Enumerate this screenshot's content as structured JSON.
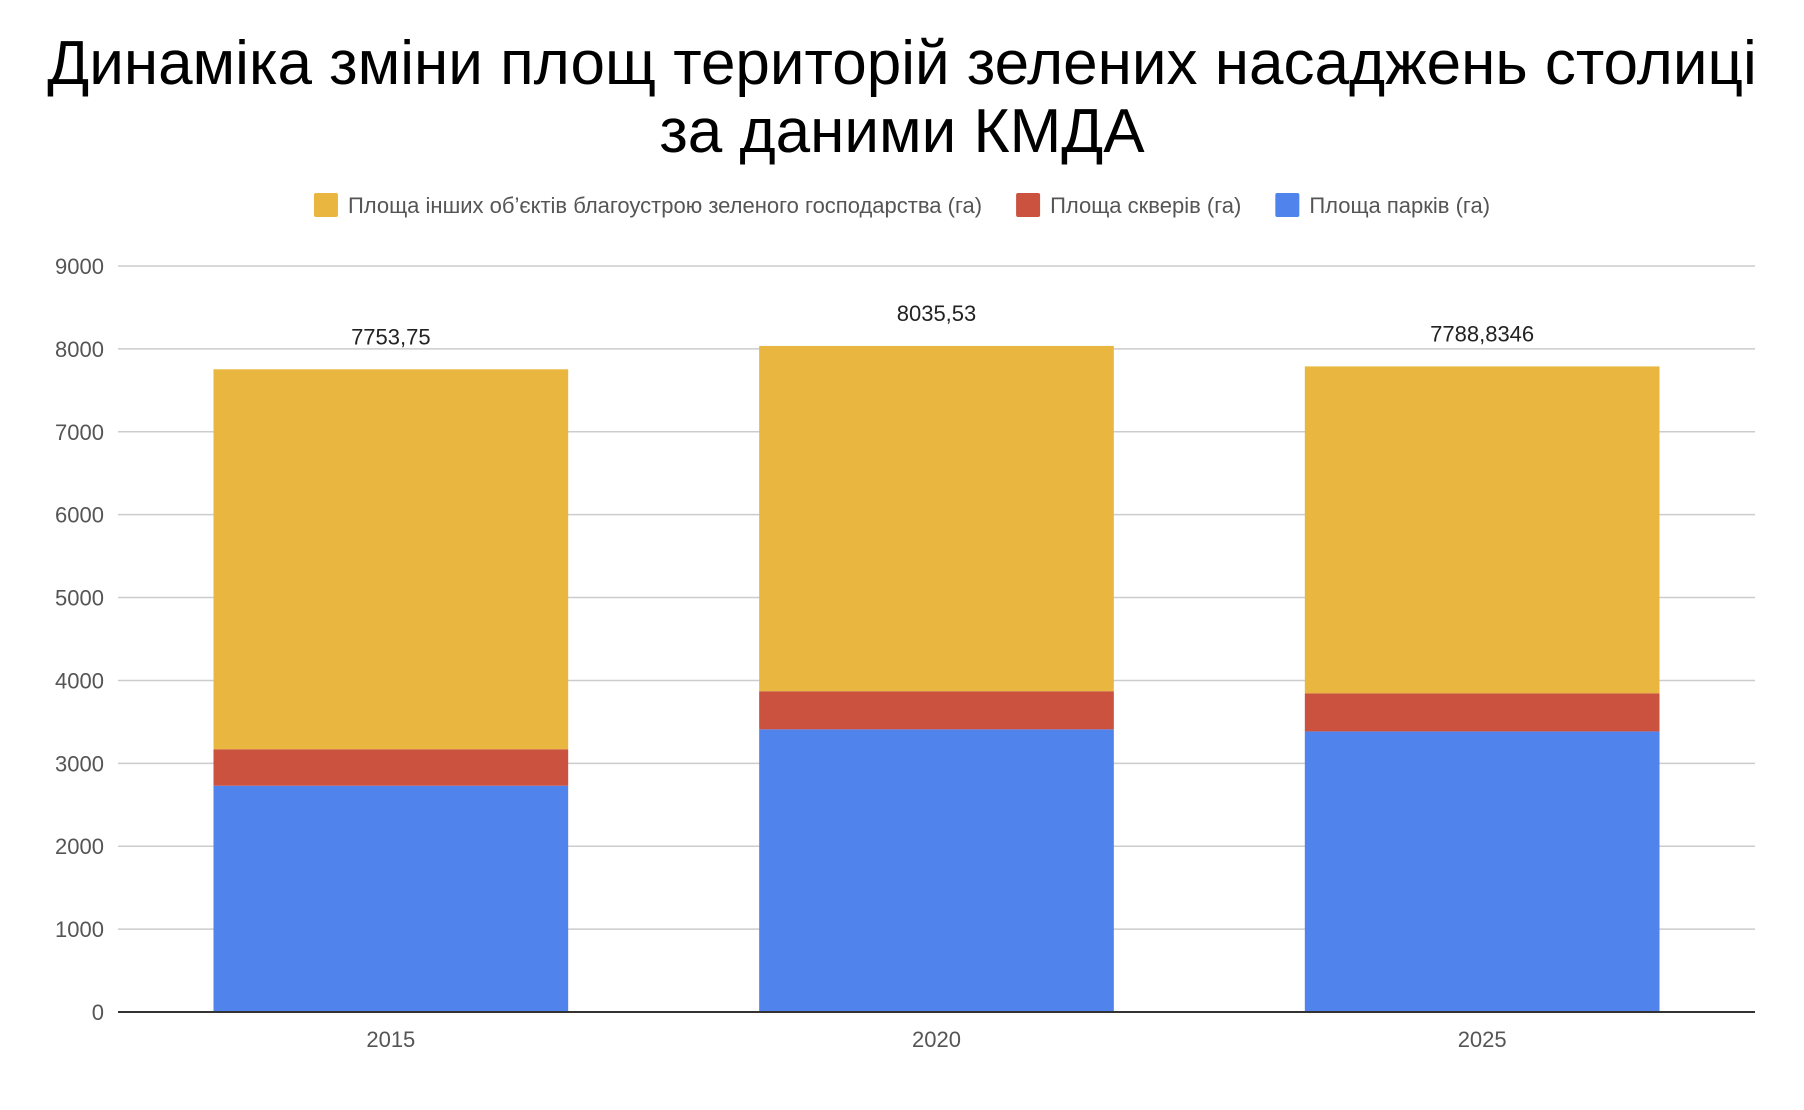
{
  "chart_data": {
    "type": "bar",
    "stacked": true,
    "title_lines": [
      "Динаміка зміни площ територій зелених насаджень столиці",
      "за даними КМДА"
    ],
    "categories": [
      "2015",
      "2020",
      "2025"
    ],
    "series": [
      {
        "name": "Площа парків (га)",
        "color": "#5083ec",
        "values": [
          2730,
          3410,
          3385
        ]
      },
      {
        "name": "Площа скверів (га)",
        "color": "#cc5240",
        "values": [
          440,
          460,
          460
        ]
      },
      {
        "name": "Площа інших об’єктів благоустрою зеленого господарства (га)",
        "color": "#e9b73f",
        "values": [
          4583.75,
          4165.53,
          3943.8346
        ]
      }
    ],
    "totals": [
      "7753,75",
      "8035,53",
      "7788,8346"
    ],
    "legend_order": [
      2,
      1,
      0
    ],
    "legend_position": "top",
    "y_ticks": [
      0,
      1000,
      2000,
      3000,
      4000,
      5000,
      6000,
      7000,
      8000,
      9000
    ],
    "ylim": [
      0,
      9000
    ],
    "grid": true
  }
}
